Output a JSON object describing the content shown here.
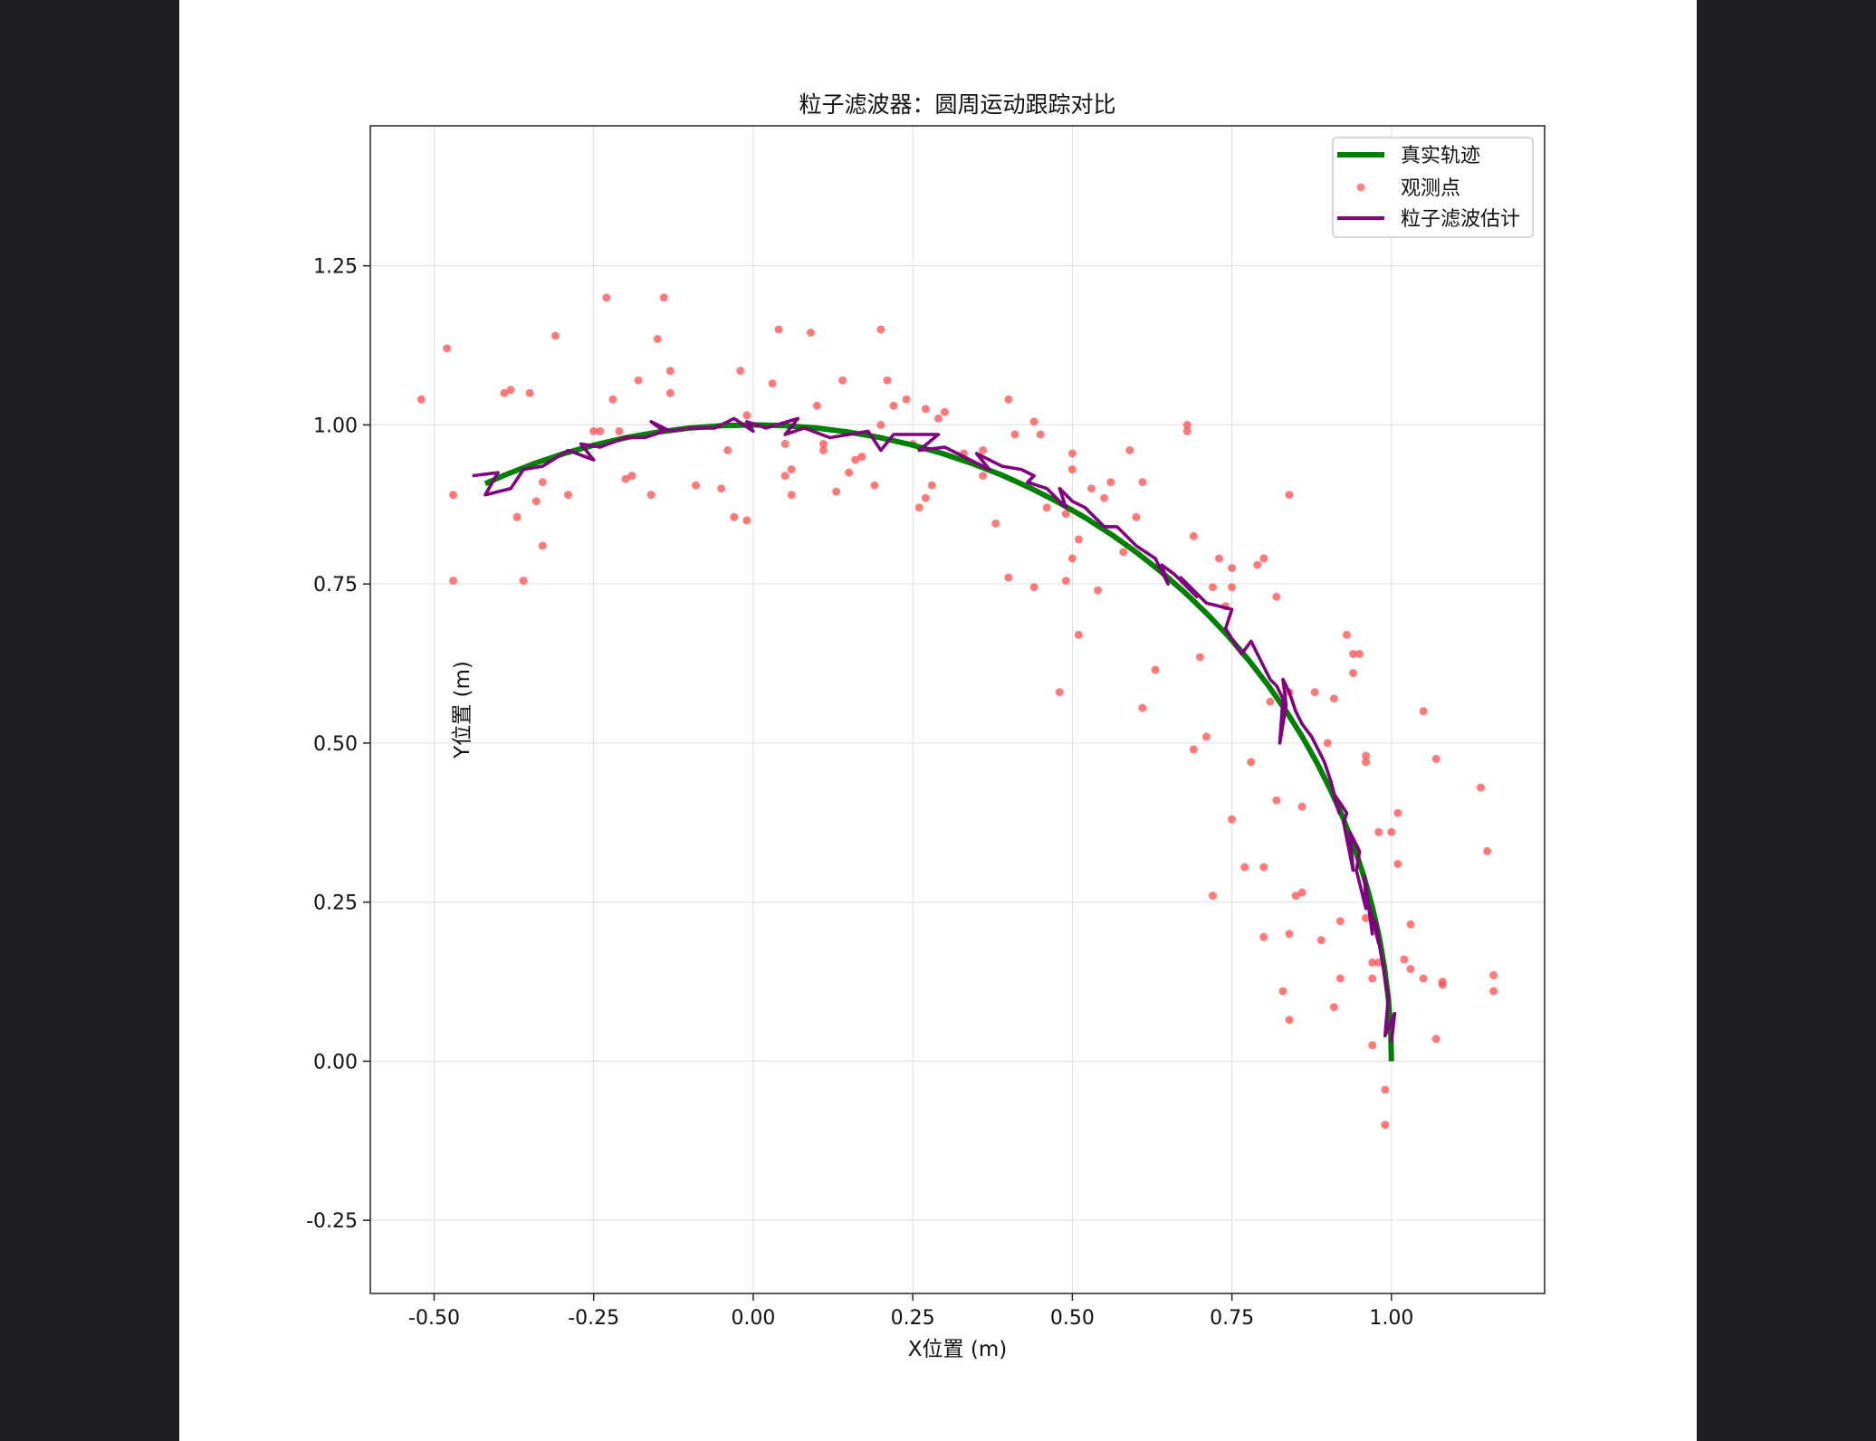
{
  "chart_data": {
    "type": "scatter",
    "title": "粒子滤波器：圆周运动跟踪对比",
    "xlabel": "X位置 (m)",
    "ylabel": "Y位置 (m)",
    "xlim": [
      -0.6,
      1.24
    ],
    "ylim": [
      -0.365,
      1.47
    ],
    "xticks": [
      -0.5,
      -0.25,
      0.0,
      0.25,
      0.5,
      0.75,
      1.0
    ],
    "xtick_labels": [
      "-0.50",
      "-0.25",
      "0.00",
      "0.25",
      "0.50",
      "0.75",
      "1.00"
    ],
    "yticks": [
      -0.25,
      0.0,
      0.25,
      0.5,
      0.75,
      1.0,
      1.25
    ],
    "ytick_labels": [
      "-0.25",
      "0.00",
      "0.25",
      "0.50",
      "0.75",
      "1.00",
      "1.25"
    ],
    "grid": true,
    "legend_position": "top-right",
    "colors": {
      "true": "#008000",
      "observed": "#ff4d4d",
      "estimate": "#800080"
    },
    "series": [
      {
        "name": "真实轨迹",
        "type": "line",
        "points": [
          [
            1.0,
            0.0
          ],
          [
            0.9988,
            0.0493
          ],
          [
            0.9951,
            0.0986
          ],
          [
            0.9891,
            0.1473
          ],
          [
            0.9806,
            0.1961
          ],
          [
            0.9698,
            0.244
          ],
          [
            0.9569,
            0.2903
          ],
          [
            0.9412,
            0.3379
          ],
          [
            0.9232,
            0.3845
          ],
          [
            0.9051,
            0.4253
          ],
          [
            0.8835,
            0.4685
          ],
          [
            0.8596,
            0.511
          ],
          [
            0.8339,
            0.5519
          ],
          [
            0.8061,
            0.5918
          ],
          [
            0.7771,
            0.6293
          ],
          [
            0.7457,
            0.6663
          ],
          [
            0.7116,
            0.7026
          ],
          [
            0.677,
            0.736
          ],
          [
            0.6404,
            0.7681
          ],
          [
            0.602,
            0.7985
          ],
          [
            0.5624,
            0.8269
          ],
          [
            0.5203,
            0.854
          ],
          [
            0.4773,
            0.8787
          ],
          [
            0.4351,
            0.9004
          ],
          [
            0.3899,
            0.9209
          ],
          [
            0.3433,
            0.9392
          ],
          [
            0.2963,
            0.9551
          ],
          [
            0.2485,
            0.9686
          ],
          [
            0.1978,
            0.9802
          ],
          [
            0.149,
            0.9888
          ],
          [
            0.0996,
            0.995
          ],
          [
            0.0493,
            0.9988
          ],
          [
            0.0,
            1.0
          ],
          [
            -0.0493,
            0.9988
          ],
          [
            -0.0996,
            0.995
          ],
          [
            -0.149,
            0.9888
          ],
          [
            -0.1978,
            0.9802
          ],
          [
            -0.2485,
            0.9686
          ],
          [
            -0.2963,
            0.9551
          ],
          [
            -0.3433,
            0.9392
          ],
          [
            -0.3899,
            0.9209
          ],
          [
            -0.42,
            0.9075
          ]
        ]
      },
      {
        "name": "观测点",
        "type": "scatter",
        "points": [
          [
            -0.52,
            1.04
          ],
          [
            -0.48,
            1.12
          ],
          [
            -0.47,
            0.89
          ],
          [
            -0.47,
            0.755
          ],
          [
            -0.39,
            1.05
          ],
          [
            -0.38,
            1.055
          ],
          [
            -0.37,
            0.855
          ],
          [
            -0.36,
            0.755
          ],
          [
            -0.35,
            1.05
          ],
          [
            -0.34,
            0.88
          ],
          [
            -0.33,
            0.81
          ],
          [
            -0.33,
            0.91
          ],
          [
            -0.31,
            1.14
          ],
          [
            -0.29,
            0.89
          ],
          [
            -0.25,
            0.99
          ],
          [
            -0.24,
            0.99
          ],
          [
            -0.23,
            1.2
          ],
          [
            -0.22,
            1.04
          ],
          [
            -0.21,
            0.99
          ],
          [
            -0.2,
            0.915
          ],
          [
            -0.19,
            0.92
          ],
          [
            -0.18,
            1.07
          ],
          [
            -0.16,
            0.89
          ],
          [
            -0.15,
            1.135
          ],
          [
            -0.14,
            1.2
          ],
          [
            -0.13,
            1.05
          ],
          [
            -0.13,
            1.085
          ],
          [
            -0.09,
            0.905
          ],
          [
            -0.05,
            0.9
          ],
          [
            -0.04,
            0.96
          ],
          [
            -0.03,
            0.855
          ],
          [
            -0.02,
            1.085
          ],
          [
            -0.01,
            0.85
          ],
          [
            -0.01,
            1.015
          ],
          [
            0.03,
            1.065
          ],
          [
            0.04,
            1.15
          ],
          [
            0.05,
            0.92
          ],
          [
            0.05,
            0.97
          ],
          [
            0.06,
            0.89
          ],
          [
            0.06,
            0.93
          ],
          [
            0.09,
            1.145
          ],
          [
            0.1,
            1.03
          ],
          [
            0.11,
            0.97
          ],
          [
            0.11,
            0.96
          ],
          [
            0.13,
            0.895
          ],
          [
            0.14,
            1.07
          ],
          [
            0.15,
            0.925
          ],
          [
            0.16,
            0.945
          ],
          [
            0.17,
            0.95
          ],
          [
            0.19,
            0.905
          ],
          [
            0.2,
            1.15
          ],
          [
            0.2,
            1.0
          ],
          [
            0.21,
            1.07
          ],
          [
            0.22,
            1.03
          ],
          [
            0.24,
            1.04
          ],
          [
            0.25,
            0.97
          ],
          [
            0.26,
            0.87
          ],
          [
            0.27,
            0.885
          ],
          [
            0.27,
            1.025
          ],
          [
            0.28,
            0.905
          ],
          [
            0.29,
            1.01
          ],
          [
            0.3,
            1.02
          ],
          [
            0.36,
            0.96
          ],
          [
            0.38,
            0.845
          ],
          [
            0.4,
            1.04
          ],
          [
            0.4,
            0.76
          ],
          [
            0.41,
            0.985
          ],
          [
            0.44,
            0.745
          ],
          [
            0.44,
            1.005
          ],
          [
            0.45,
            0.985
          ],
          [
            0.46,
            0.87
          ],
          [
            0.48,
            0.58
          ],
          [
            0.49,
            0.86
          ],
          [
            0.5,
            0.93
          ],
          [
            0.5,
            0.955
          ],
          [
            0.5,
            0.79
          ],
          [
            0.51,
            0.67
          ],
          [
            0.51,
            0.82
          ],
          [
            0.53,
            0.9
          ],
          [
            0.54,
            0.74
          ],
          [
            0.55,
            0.885
          ],
          [
            0.56,
            0.91
          ],
          [
            0.58,
            0.8
          ],
          [
            0.59,
            0.96
          ],
          [
            0.6,
            0.855
          ],
          [
            0.61,
            0.91
          ],
          [
            0.61,
            0.555
          ],
          [
            0.63,
            0.615
          ],
          [
            0.68,
            0.99
          ],
          [
            0.68,
            1.0
          ],
          [
            0.69,
            0.825
          ],
          [
            0.69,
            0.49
          ],
          [
            0.7,
            0.635
          ],
          [
            0.71,
            0.51
          ],
          [
            0.72,
            0.745
          ],
          [
            0.72,
            0.26
          ],
          [
            0.73,
            0.79
          ],
          [
            0.74,
            0.715
          ],
          [
            0.75,
            0.745
          ],
          [
            0.75,
            0.775
          ],
          [
            0.75,
            0.38
          ],
          [
            0.77,
            0.305
          ],
          [
            0.78,
            0.47
          ],
          [
            0.79,
            0.78
          ],
          [
            0.8,
            0.305
          ],
          [
            0.8,
            0.79
          ],
          [
            0.8,
            0.195
          ],
          [
            0.81,
            0.565
          ],
          [
            0.82,
            0.73
          ],
          [
            0.82,
            0.41
          ],
          [
            0.83,
            0.11
          ],
          [
            0.84,
            0.89
          ],
          [
            0.84,
            0.065
          ],
          [
            0.84,
            0.58
          ],
          [
            0.84,
            0.2
          ],
          [
            0.85,
            0.26
          ],
          [
            0.86,
            0.4
          ],
          [
            0.86,
            0.265
          ],
          [
            0.88,
            0.58
          ],
          [
            0.89,
            0.19
          ],
          [
            0.9,
            0.5
          ],
          [
            0.91,
            0.57
          ],
          [
            0.91,
            0.085
          ],
          [
            0.92,
            0.13
          ],
          [
            0.92,
            0.22
          ],
          [
            0.93,
            0.67
          ],
          [
            0.94,
            0.64
          ],
          [
            0.94,
            0.61
          ],
          [
            0.95,
            0.64
          ],
          [
            0.96,
            0.48
          ],
          [
            0.96,
            0.225
          ],
          [
            0.96,
            0.47
          ],
          [
            0.97,
            0.155
          ],
          [
            0.97,
            0.13
          ],
          [
            0.98,
            0.155
          ],
          [
            0.98,
            0.36
          ],
          [
            0.99,
            -0.045
          ],
          [
            0.99,
            -0.1
          ],
          [
            1.0,
            0.36
          ],
          [
            1.0,
            0.07
          ],
          [
            1.01,
            0.39
          ],
          [
            1.01,
            0.31
          ],
          [
            1.02,
            0.16
          ],
          [
            1.03,
            0.145
          ],
          [
            1.03,
            0.215
          ],
          [
            1.05,
            0.55
          ],
          [
            1.05,
            0.13
          ],
          [
            1.07,
            0.475
          ],
          [
            1.07,
            0.035
          ],
          [
            1.08,
            0.125
          ],
          [
            1.08,
            0.12
          ],
          [
            1.14,
            0.43
          ],
          [
            1.15,
            0.33
          ],
          [
            1.16,
            0.135
          ],
          [
            1.16,
            0.11
          ],
          [
            0.97,
            0.025
          ],
          [
            0.49,
            0.755
          ],
          [
            0.36,
            0.92
          ],
          [
            0.33,
            0.955
          ]
        ]
      },
      {
        "name": "粒子滤波估计",
        "type": "line",
        "points": [
          [
            1.0,
            0.03
          ],
          [
            1.005,
            0.075
          ],
          [
            0.99,
            0.04
          ],
          [
            0.995,
            0.1
          ],
          [
            0.985,
            0.16
          ],
          [
            0.975,
            0.22
          ],
          [
            0.98,
            0.185
          ],
          [
            0.965,
            0.245
          ],
          [
            0.97,
            0.2
          ],
          [
            0.958,
            0.29
          ],
          [
            0.96,
            0.24
          ],
          [
            0.945,
            0.3
          ],
          [
            0.95,
            0.33
          ],
          [
            0.935,
            0.36
          ],
          [
            0.94,
            0.3
          ],
          [
            0.925,
            0.375
          ],
          [
            0.93,
            0.39
          ],
          [
            0.91,
            0.42
          ],
          [
            0.918,
            0.39
          ],
          [
            0.905,
            0.44
          ],
          [
            0.895,
            0.47
          ],
          [
            0.885,
            0.49
          ],
          [
            0.875,
            0.51
          ],
          [
            0.86,
            0.53
          ],
          [
            0.85,
            0.55
          ],
          [
            0.84,
            0.58
          ],
          [
            0.83,
            0.6
          ],
          [
            0.835,
            0.56
          ],
          [
            0.825,
            0.5
          ],
          [
            0.83,
            0.57
          ],
          [
            0.82,
            0.59
          ],
          [
            0.81,
            0.6
          ],
          [
            0.8,
            0.62
          ],
          [
            0.79,
            0.64
          ],
          [
            0.78,
            0.66
          ],
          [
            0.765,
            0.64
          ],
          [
            0.74,
            0.68
          ],
          [
            0.75,
            0.71
          ],
          [
            0.71,
            0.72
          ],
          [
            0.69,
            0.74
          ],
          [
            0.67,
            0.76
          ],
          [
            0.695,
            0.73
          ],
          [
            0.66,
            0.765
          ],
          [
            0.64,
            0.78
          ],
          [
            0.65,
            0.75
          ],
          [
            0.63,
            0.79
          ],
          [
            0.6,
            0.81
          ],
          [
            0.58,
            0.83
          ],
          [
            0.57,
            0.84
          ],
          [
            0.55,
            0.84
          ],
          [
            0.52,
            0.87
          ],
          [
            0.5,
            0.88
          ],
          [
            0.48,
            0.9
          ],
          [
            0.49,
            0.87
          ],
          [
            0.46,
            0.9
          ],
          [
            0.43,
            0.91
          ],
          [
            0.44,
            0.92
          ],
          [
            0.42,
            0.93
          ],
          [
            0.39,
            0.935
          ],
          [
            0.35,
            0.955
          ],
          [
            0.37,
            0.93
          ],
          [
            0.3,
            0.965
          ],
          [
            0.26,
            0.96
          ],
          [
            0.29,
            0.985
          ],
          [
            0.22,
            0.985
          ],
          [
            0.2,
            0.96
          ],
          [
            0.18,
            0.99
          ],
          [
            0.15,
            0.985
          ],
          [
            0.12,
            0.98
          ],
          [
            0.08,
            0.995
          ],
          [
            0.05,
            0.985
          ],
          [
            0.07,
            1.01
          ],
          [
            0.02,
            0.995
          ],
          [
            -0.01,
            1.005
          ],
          [
            0.0,
            0.99
          ],
          [
            -0.03,
            1.01
          ],
          [
            -0.06,
            0.995
          ],
          [
            -0.1,
            0.995
          ],
          [
            -0.13,
            0.99
          ],
          [
            -0.16,
            1.005
          ],
          [
            -0.14,
            0.99
          ],
          [
            -0.17,
            0.98
          ],
          [
            -0.2,
            0.98
          ],
          [
            -0.24,
            0.965
          ],
          [
            -0.27,
            0.97
          ],
          [
            -0.25,
            0.945
          ],
          [
            -0.29,
            0.96
          ],
          [
            -0.33,
            0.935
          ],
          [
            -0.36,
            0.93
          ],
          [
            -0.38,
            0.9
          ],
          [
            -0.42,
            0.89
          ],
          [
            -0.4,
            0.925
          ],
          [
            -0.44,
            0.92
          ]
        ]
      }
    ]
  }
}
